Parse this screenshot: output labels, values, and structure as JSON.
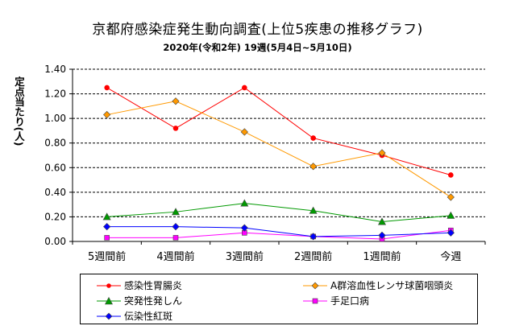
{
  "chart_data": {
    "type": "line",
    "title": "京都府感染症発生動向調査(上位5疾患の推移グラフ)",
    "subtitle": "2020年(令和2年) 19週(5月4日~5月10日)",
    "ylabel": "定点当たり(人)",
    "xlabel": "",
    "categories": [
      "5週間前",
      "4週間前",
      "3週間前",
      "2週間前",
      "1週間前",
      "今週"
    ],
    "ylim": [
      0,
      1.4
    ],
    "yticks": [
      "0.00",
      "0.20",
      "0.40",
      "0.60",
      "0.80",
      "1.00",
      "1.20",
      "1.40"
    ],
    "grid": "horizontal dashed",
    "legend_position": "bottom",
    "series": [
      {
        "name": "感染性胃腸炎",
        "values": [
          1.25,
          0.92,
          1.25,
          0.84,
          0.7,
          0.54
        ],
        "color": "#ff0000",
        "marker": "circle"
      },
      {
        "name": "A群溶血性レンサ球菌咽頭炎",
        "values": [
          1.03,
          1.14,
          0.89,
          0.61,
          0.72,
          0.36
        ],
        "color": "#ff9900",
        "marker": "diamond"
      },
      {
        "name": "突発性発しん",
        "values": [
          0.2,
          0.24,
          0.31,
          0.25,
          0.16,
          0.21
        ],
        "color": "#009900",
        "marker": "triangle"
      },
      {
        "name": "手足口病",
        "values": [
          0.03,
          0.03,
          0.07,
          0.04,
          0.02,
          0.09
        ],
        "color": "#ff00ff",
        "marker": "square"
      },
      {
        "name": "伝染性紅斑",
        "values": [
          0.12,
          0.12,
          0.11,
          0.04,
          0.05,
          0.07
        ],
        "color": "#0000ff",
        "marker": "diamond"
      }
    ]
  }
}
